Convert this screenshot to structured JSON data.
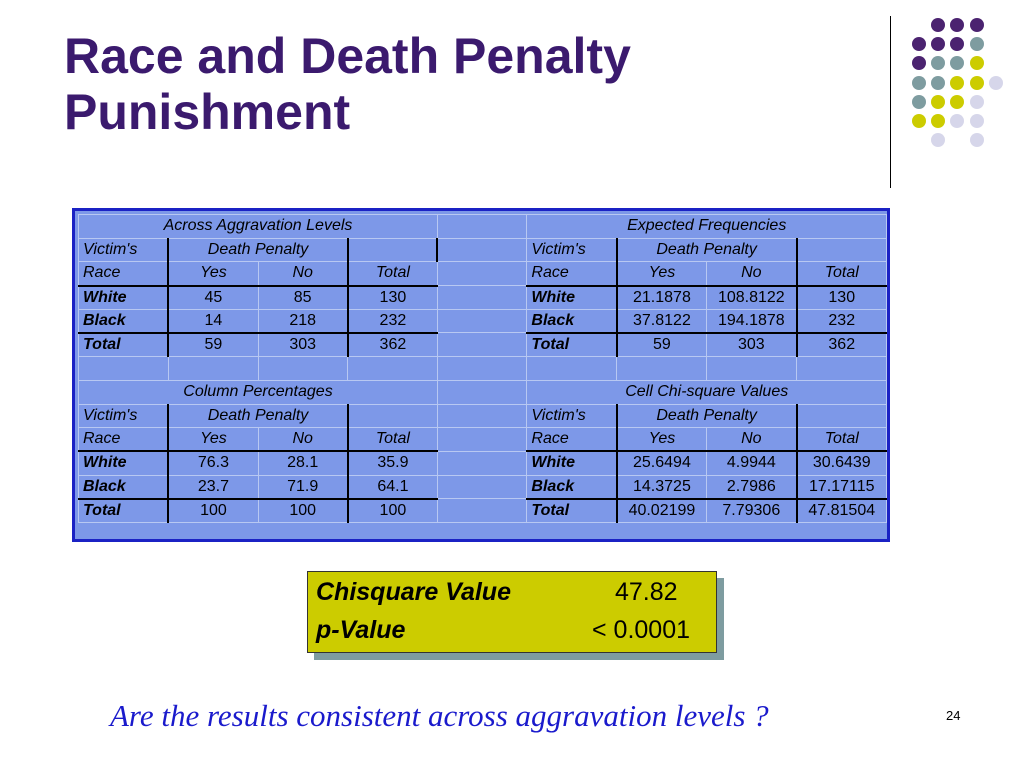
{
  "slide": {
    "title": "Race and Death Penalty Punishment",
    "page_number": "24",
    "question": "Are the results consistent across aggravation levels ?"
  },
  "panels": {
    "across": {
      "title": "Across Aggravation Levels",
      "h1": [
        "Victim's",
        "Death Penalty"
      ],
      "h2": [
        "Race",
        "Yes",
        "No",
        "Total"
      ],
      "rows": [
        [
          "White",
          "45",
          "85",
          "130"
        ],
        [
          "Black",
          "14",
          "218",
          "232"
        ],
        [
          "Total",
          "59",
          "303",
          "362"
        ]
      ]
    },
    "expected": {
      "title": "Expected Frequencies",
      "h1": [
        "Victim's",
        "Death Penalty"
      ],
      "h2": [
        "Race",
        "Yes",
        "No",
        "Total"
      ],
      "rows": [
        [
          "White",
          "21.1878",
          "108.8122",
          "130"
        ],
        [
          "Black",
          "37.8122",
          "194.1878",
          "232"
        ],
        [
          "Total",
          "59",
          "303",
          "362"
        ]
      ]
    },
    "colpct": {
      "title": "Column Percentages",
      "h1": [
        "Victim's",
        "Death Penalty"
      ],
      "h2": [
        "Race",
        "Yes",
        "No",
        "Total"
      ],
      "rows": [
        [
          "White",
          "76.3",
          "28.1",
          "35.9"
        ],
        [
          "Black",
          "23.7",
          "71.9",
          "64.1"
        ],
        [
          "Total",
          "100",
          "100",
          "100"
        ]
      ]
    },
    "chisq": {
      "title": "Cell Chi-square Values",
      "h1": [
        "Victim's",
        "Death Penalty"
      ],
      "h2": [
        "Race",
        "Yes",
        "No",
        "Total"
      ],
      "rows": [
        [
          "White",
          "25.6494",
          "4.9944",
          "30.6439"
        ],
        [
          "Black",
          "14.3725",
          "2.7986",
          "17.17115"
        ],
        [
          "Total",
          "40.02199",
          "7.79306",
          "47.81504"
        ]
      ]
    }
  },
  "summary": {
    "chisquare_label": "Chisquare Value",
    "chisquare_value": "47.82",
    "pvalue_label": "p-Value",
    "pvalue_value": "< 0.0001"
  },
  "colors": {
    "title": "#3b1a6e",
    "table_fill": "#7d98e8",
    "table_border": "#1b22c4",
    "summary_fill": "#cccc00",
    "question": "#1a1acc",
    "dot_purple": "#4b2370",
    "dot_teal": "#7e9ca0",
    "dot_yellow": "#cccc00",
    "dot_lavender": "#d6d6ea"
  }
}
